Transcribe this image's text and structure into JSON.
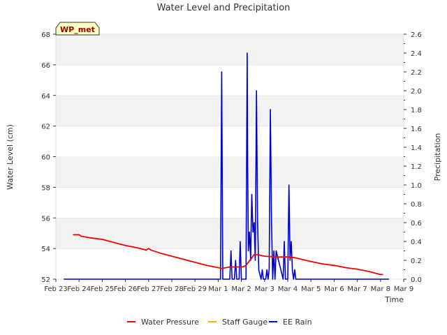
{
  "chart_data": {
    "type": "line",
    "title": "Water Level and Precipitation",
    "badge": "WP_met",
    "xlabel": "Time",
    "ylabel": "Water Level (cm)",
    "y2label": "Precipitation",
    "x_ticks": [
      "Feb 23",
      "Feb 24",
      "Feb 25",
      "Feb 26",
      "Feb 27",
      "Feb 28",
      "Feb 29",
      "Mar 1",
      "Mar 2",
      "Mar 3",
      "Mar 4",
      "Mar 5",
      "Mar 6",
      "Mar 7",
      "Mar 8",
      "Mar 9"
    ],
    "xlim": [
      0,
      15
    ],
    "ylim": [
      52,
      68
    ],
    "y_ticks": [
      "52",
      "54",
      "56",
      "58",
      "60",
      "62",
      "64",
      "66",
      "68"
    ],
    "y2lim": [
      0,
      2.6
    ],
    "y2_ticks": [
      "0.0",
      "0.2",
      "0.4",
      "0.6",
      "0.8",
      "1.0",
      "1.2",
      "1.4",
      "1.6",
      "1.8",
      "2.0",
      "2.2",
      "2.4",
      "2.6"
    ],
    "grid": "horizontal bands",
    "legend": {
      "placement": "bottom",
      "entries": [
        {
          "name": "Water Pressure",
          "color": "#ee0000"
        },
        {
          "name": "Staff Gauge",
          "color": "#ffa500"
        },
        {
          "name": "EE Rain",
          "color": "#0000cc"
        }
      ]
    },
    "series": [
      {
        "name": "Water Pressure",
        "color": "#ee0000",
        "axis": "left",
        "x": [
          0.75,
          1.0,
          1.1,
          1.5,
          2.0,
          2.5,
          3.0,
          3.5,
          3.9,
          4.0,
          4.1,
          4.5,
          5.0,
          5.5,
          6.0,
          6.5,
          7.0,
          7.15,
          7.5,
          7.9,
          8.05,
          8.2,
          8.35,
          8.55,
          8.7,
          9.0,
          9.5,
          10.0,
          10.3,
          10.6,
          11.0,
          11.5,
          12.0,
          12.5,
          13.0,
          13.5,
          14.0,
          14.1
        ],
        "y": [
          54.9,
          54.9,
          54.8,
          54.7,
          54.6,
          54.4,
          54.2,
          54.05,
          53.9,
          54.0,
          53.9,
          53.7,
          53.5,
          53.3,
          53.1,
          52.9,
          52.75,
          52.7,
          52.8,
          52.8,
          52.8,
          52.9,
          53.2,
          53.6,
          53.6,
          53.5,
          53.45,
          53.45,
          53.4,
          53.3,
          53.15,
          53.0,
          52.9,
          52.75,
          52.65,
          52.5,
          52.3,
          52.3
        ]
      },
      {
        "name": "Staff Gauge",
        "color": "#ffa500",
        "axis": "left",
        "x": [],
        "y": []
      },
      {
        "name": "EE Rain",
        "color": "#0000cc",
        "axis": "right",
        "x": [
          0.35,
          7.1,
          7.15,
          7.2,
          7.5,
          7.55,
          7.6,
          7.7,
          7.75,
          7.8,
          7.9,
          7.95,
          8.0,
          8.2,
          8.25,
          8.27,
          8.3,
          8.35,
          8.4,
          8.42,
          8.45,
          8.5,
          8.55,
          8.6,
          8.65,
          8.7,
          8.75,
          8.85,
          8.9,
          8.95,
          9.05,
          9.1,
          9.15,
          9.2,
          9.25,
          9.3,
          9.35,
          9.4,
          9.45,
          9.5,
          9.8,
          9.85,
          9.9,
          10.0,
          10.05,
          10.1,
          10.15,
          10.2,
          10.25,
          10.3,
          10.35,
          14.35
        ],
        "y": [
          0,
          0,
          2.2,
          0,
          0,
          0.3,
          0,
          0,
          0.2,
          0,
          0,
          0.4,
          0,
          0,
          2.4,
          1.2,
          0.3,
          0.5,
          0.2,
          0.5,
          0.9,
          0.5,
          0.6,
          0.2,
          2.0,
          0.6,
          0.1,
          0,
          0.1,
          0,
          0,
          0.1,
          0,
          0.1,
          1.8,
          0.6,
          0,
          0.3,
          0,
          0.3,
          0,
          0.4,
          0,
          0,
          1.0,
          0.2,
          0.4,
          0.1,
          0,
          0.1,
          0,
          0
        ]
      }
    ]
  }
}
